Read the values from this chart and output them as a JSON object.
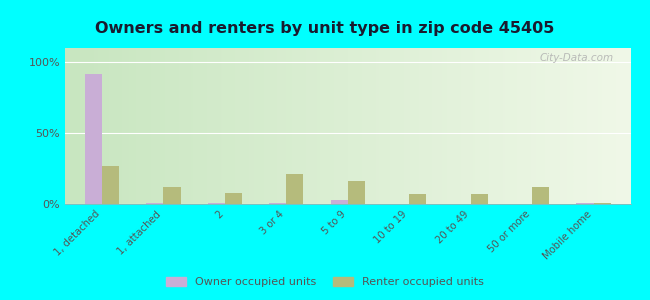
{
  "title": "Owners and renters by unit type in zip code 45405",
  "categories": [
    "1, detached",
    "1, attached",
    "2",
    "3 or 4",
    "5 to 9",
    "10 to 19",
    "20 to 49",
    "50 or more",
    "Mobile home"
  ],
  "owner_values": [
    92,
    1,
    0.5,
    0.5,
    3,
    0,
    0,
    0,
    0.5
  ],
  "renter_values": [
    27,
    12,
    8,
    21,
    16,
    7,
    7,
    12,
    1
  ],
  "owner_color": "#c9aed6",
  "renter_color": "#b5bb7c",
  "bg_top": "#c8e6c0",
  "bg_bottom": "#f0f8e8",
  "outer_background": "#00ffff",
  "yticks": [
    0,
    50,
    100
  ],
  "ylim": [
    0,
    110
  ],
  "bar_width": 0.28,
  "legend_owner": "Owner occupied units",
  "legend_renter": "Renter occupied units",
  "watermark": "City-Data.com",
  "title_color": "#1a1a2e",
  "tick_color": "#555555",
  "title_fontsize": 11.5
}
